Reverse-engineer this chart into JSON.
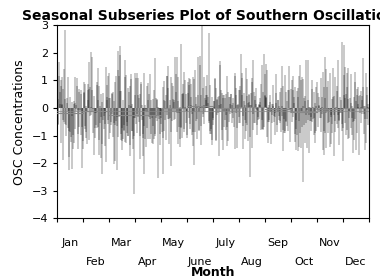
{
  "title": "Seasonal Subseries Plot of Southern Oscillations",
  "ylabel": "OSC Concentrations",
  "xlabel": "Month",
  "ylim": [
    -4,
    3
  ],
  "yticks": [
    -4,
    -3,
    -2,
    -1,
    0,
    1,
    2,
    3
  ],
  "hline_y": -0.1,
  "hline_color": "#888888",
  "months_odd": [
    "Jan",
    "Mar",
    "May",
    "July",
    "Sep",
    "Nov"
  ],
  "months_even": [
    "Feb",
    "Apr",
    "June",
    "Aug",
    "Oct",
    "Dec"
  ],
  "odd_month_indices": [
    0,
    2,
    4,
    6,
    8,
    10
  ],
  "even_month_indices": [
    1,
    3,
    5,
    7,
    9,
    11
  ],
  "n_months": 12,
  "n_years": 70,
  "background_color": "#ffffff",
  "line_color": "#000000",
  "mean_line_color": "#888888",
  "title_fontsize": 10,
  "label_fontsize": 9,
  "tick_fontsize": 8,
  "month_means": [
    -0.1,
    -0.15,
    -0.2,
    -0.1,
    -0.05,
    0.0,
    0.05,
    0.0,
    -0.05,
    -0.1,
    -0.1,
    -0.1
  ],
  "month_stds": [
    0.9,
    1.0,
    1.1,
    0.95,
    0.9,
    0.85,
    0.8,
    0.85,
    0.85,
    0.9,
    0.95,
    0.9
  ]
}
